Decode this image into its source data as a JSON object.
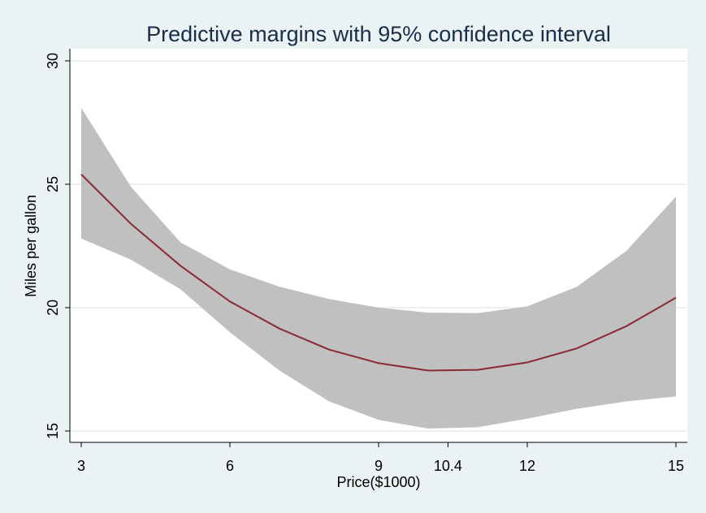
{
  "chart_data": {
    "type": "line",
    "title": "Predictive margins with 95% confidence interval",
    "xlabel": "Price($1000)",
    "ylabel": "Miles per gallon",
    "xlim": [
      3,
      15
    ],
    "ylim": [
      15,
      30
    ],
    "x_ticks": [
      3,
      6,
      9,
      10.4,
      12,
      15
    ],
    "x_tick_labels": [
      "3",
      "6",
      "9",
      "10.4",
      "12",
      "15"
    ],
    "y_ticks": [
      15,
      20,
      25,
      30
    ],
    "y_tick_labels": [
      "15",
      "20",
      "25",
      "30"
    ],
    "grid": true,
    "legend": "none",
    "series": [
      {
        "type": "line",
        "color": "#8b2a35",
        "x": [
          3,
          4,
          5,
          6,
          7,
          8,
          9,
          10,
          11,
          12,
          13,
          14,
          15
        ],
        "y": [
          25.4,
          23.4,
          21.7,
          20.25,
          19.15,
          18.3,
          17.75,
          17.45,
          17.48,
          17.78,
          18.35,
          19.25,
          20.4
        ]
      },
      {
        "type": "band",
        "color": "#c0c0c0",
        "x": [
          3,
          4,
          5,
          6,
          7,
          8,
          9,
          10,
          11,
          12,
          13,
          14,
          15
        ],
        "upper": [
          28.1,
          24.9,
          22.65,
          21.55,
          20.85,
          20.35,
          20.0,
          19.8,
          19.78,
          20.05,
          20.85,
          22.3,
          24.5
        ],
        "lower": [
          22.8,
          21.95,
          20.75,
          19.0,
          17.45,
          16.2,
          15.45,
          15.1,
          15.15,
          15.5,
          15.9,
          16.2,
          16.4
        ]
      }
    ]
  }
}
